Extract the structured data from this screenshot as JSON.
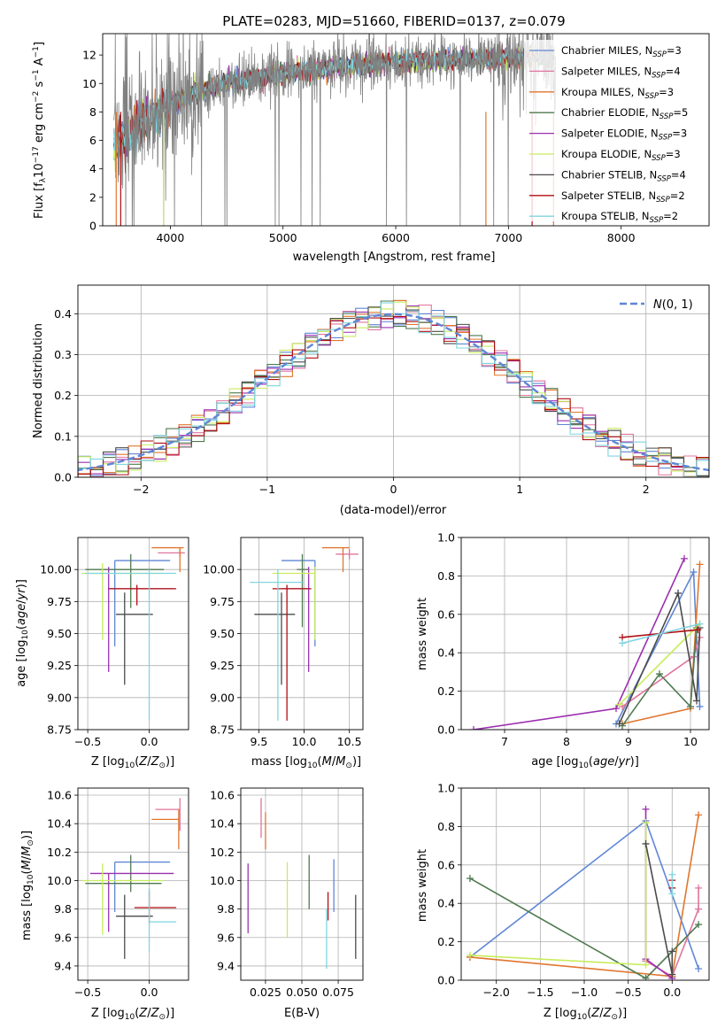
{
  "colors": {
    "Chabrier MILES": "#5f86d6",
    "Salpeter MILES": "#e0749e",
    "Kroupa MILES": "#e0762e",
    "Chabrier ELODIE": "#4f7a4f",
    "Salpeter ELODIE": "#9b2fb0",
    "Kroupa ELODIE": "#c8ec5c",
    "Chabrier STELIB": "#4b4b4b",
    "Salpeter STELIB": "#b00e12",
    "Kroupa STELIB": "#7fd5df",
    "data": "#808080",
    "normal": "#5f86d6"
  },
  "chart_data": [
    {
      "id": "spectrum",
      "type": "line",
      "title": "PLATE=0283, MJD=51660, FIBERID=0137, z=0.079",
      "xlabel": "wavelength [Angstrom, rest frame]",
      "ylabel": "Flux [f_λ 10^-17 erg cm^-2 s^-1 A^-1]",
      "xlim": [
        3400,
        8780
      ],
      "ylim": [
        0,
        13.5
      ],
      "xticks": [
        4000,
        5000,
        6000,
        7000,
        8000
      ],
      "yticks": [
        0,
        2,
        4,
        6,
        8,
        10,
        12
      ],
      "grid": false,
      "legend_position": "right",
      "continuum": {
        "x": [
          3500,
          3650,
          3800,
          4000,
          4200,
          4500,
          5000,
          5500,
          6000,
          6500,
          7000,
          7400
        ],
        "y": [
          6.0,
          6.5,
          7.5,
          8.6,
          9.3,
          10.0,
          10.7,
          11.2,
          11.5,
          11.7,
          11.8,
          11.8
        ]
      },
      "series": [
        {
          "name": "Chabrier MILES, N_SSP=3"
        },
        {
          "name": "Salpeter MILES, N_SSP=4"
        },
        {
          "name": "Kroupa MILES, N_SSP=3"
        },
        {
          "name": "Chabrier ELODIE, N_SSP=5"
        },
        {
          "name": "Salpeter ELODIE, N_SSP=3"
        },
        {
          "name": "Kroupa ELODIE, N_SSP=3"
        },
        {
          "name": "Chabrier STELIB, N_SSP=4"
        },
        {
          "name": "Salpeter STELIB, N_SSP=2"
        },
        {
          "name": "Kroupa STELIB, N_SSP=2"
        }
      ]
    },
    {
      "id": "residuals",
      "type": "histogram",
      "xlabel": "(data-model)/error",
      "ylabel": "Normed distribution",
      "xlim": [
        -2.5,
        2.5
      ],
      "ylim": [
        0,
        0.47
      ],
      "xticks": [
        -2,
        -1,
        0,
        1,
        2
      ],
      "yticks": [
        0.0,
        0.1,
        0.2,
        0.3,
        0.4
      ],
      "grid": true,
      "legend": "N(0, 1)",
      "legend_position": "top-right",
      "bin_width": 0.1
    },
    {
      "id": "age-vs-z",
      "type": "errorbar",
      "xlabel": "Z [log10(Z/Z⊙)]",
      "ylabel": "age [log10(age/yr)]",
      "xlim": [
        -0.58,
        0.32
      ],
      "ylim": [
        8.75,
        10.25
      ],
      "xticks": [
        -0.5,
        0.0
      ],
      "yticks": [
        8.75,
        9.0,
        9.25,
        9.5,
        9.75,
        10.0
      ],
      "grid": true,
      "points": [
        {
          "name": "Chabrier MILES",
          "x": -0.28,
          "xlo": -0.28,
          "xhi": 0.17,
          "y": 10.07,
          "ylo": 9.4,
          "yhi": 10.07
        },
        {
          "name": "Salpeter MILES",
          "x": 0.25,
          "xlo": 0.07,
          "xhi": 0.29,
          "y": 10.13,
          "ylo": 10.1,
          "yhi": 10.16
        },
        {
          "name": "Kroupa MILES",
          "x": 0.25,
          "xlo": 0.02,
          "xhi": 0.28,
          "y": 10.17,
          "ylo": 9.98,
          "yhi": 10.17
        },
        {
          "name": "Chabrier ELODIE",
          "x": -0.15,
          "xlo": -0.52,
          "xhi": 0.12,
          "y": 10.0,
          "ylo": 9.7,
          "yhi": 10.12
        },
        {
          "name": "Salpeter ELODIE",
          "x": -0.33,
          "xlo": -0.33,
          "xhi": 0.2,
          "y": 9.85,
          "ylo": 9.2,
          "yhi": 10.02
        },
        {
          "name": "Kroupa ELODIE",
          "x": -0.38,
          "xlo": -0.55,
          "xhi": 0.1,
          "y": 9.97,
          "ylo": 9.45,
          "yhi": 10.05
        },
        {
          "name": "Chabrier STELIB",
          "x": -0.2,
          "xlo": -0.27,
          "xhi": 0.03,
          "y": 9.65,
          "ylo": 9.1,
          "yhi": 9.82
        },
        {
          "name": "Salpeter STELIB",
          "x": -0.1,
          "xlo": -0.33,
          "xhi": 0.22,
          "y": 9.85,
          "ylo": 9.72,
          "yhi": 9.88
        },
        {
          "name": "Kroupa STELIB",
          "x": 0.0,
          "xlo": -0.52,
          "xhi": 0.22,
          "y": 9.97,
          "ylo": 8.82,
          "yhi": 10.0
        }
      ]
    },
    {
      "id": "age-vs-mass",
      "type": "errorbar",
      "xlabel": "mass [log10(M/M⊙)]",
      "ylabel": "",
      "xlim": [
        9.3,
        10.65
      ],
      "ylim": [
        8.75,
        10.25
      ],
      "xticks": [
        9.5,
        10.0,
        10.5
      ],
      "yticks": [
        8.75,
        9.0,
        9.25,
        9.5,
        9.75,
        10.0
      ],
      "grid": true,
      "points": [
        {
          "name": "Chabrier MILES",
          "x": 10.12,
          "xlo": 9.75,
          "xhi": 10.12,
          "y": 10.07,
          "ylo": 9.4,
          "yhi": 10.07
        },
        {
          "name": "Salpeter MILES",
          "x": 10.5,
          "xlo": 10.35,
          "xhi": 10.6,
          "y": 10.12,
          "ylo": 10.08,
          "yhi": 10.16
        },
        {
          "name": "Kroupa MILES",
          "x": 10.43,
          "xlo": 10.2,
          "xhi": 10.5,
          "y": 10.17,
          "ylo": 9.98,
          "yhi": 10.17
        },
        {
          "name": "Chabrier ELODIE",
          "x": 9.98,
          "xlo": 9.92,
          "xhi": 10.05,
          "y": 10.0,
          "ylo": 9.55,
          "yhi": 10.12
        },
        {
          "name": "Salpeter ELODIE",
          "x": 10.05,
          "xlo": 9.75,
          "xhi": 10.05,
          "y": 9.85,
          "ylo": 9.2,
          "yhi": 10.02
        },
        {
          "name": "Kroupa ELODIE",
          "x": 10.12,
          "xlo": 9.65,
          "xhi": 10.12,
          "y": 9.97,
          "ylo": 9.45,
          "yhi": 10.02
        },
        {
          "name": "Chabrier STELIB",
          "x": 9.75,
          "xlo": 9.45,
          "xhi": 9.9,
          "y": 9.65,
          "ylo": 9.1,
          "yhi": 9.82
        },
        {
          "name": "Salpeter STELIB",
          "x": 9.81,
          "xlo": 9.65,
          "xhi": 10.08,
          "y": 9.85,
          "ylo": 8.82,
          "yhi": 9.88
        },
        {
          "name": "Kroupa STELIB",
          "x": 9.71,
          "xlo": 9.4,
          "xhi": 10.0,
          "y": 9.9,
          "ylo": 8.82,
          "yhi": 10.0
        }
      ]
    },
    {
      "id": "weight-vs-age",
      "type": "line",
      "xlabel": "age [log10(age/yr)]",
      "ylabel": "mass weight",
      "xlim": [
        6.3,
        10.3
      ],
      "ylim": [
        0,
        1.0
      ],
      "xticks": [
        7,
        8,
        9,
        10
      ],
      "yticks": [
        0.0,
        0.2,
        0.4,
        0.6,
        0.8,
        1.0
      ],
      "grid": true,
      "series": [
        {
          "name": "Chabrier MILES",
          "x": [
            8.8,
            10.05,
            10.15
          ],
          "y": [
            0.03,
            0.82,
            0.12
          ]
        },
        {
          "name": "Salpeter MILES",
          "x": [
            8.9,
            10.05,
            10.15
          ],
          "y": [
            0.12,
            0.38,
            0.48
          ]
        },
        {
          "name": "Kroupa MILES",
          "x": [
            8.9,
            10.0,
            10.15
          ],
          "y": [
            0.03,
            0.11,
            0.86
          ]
        },
        {
          "name": "Chabrier ELODIE",
          "x": [
            8.9,
            9.5,
            10.0,
            10.1
          ],
          "y": [
            0.02,
            0.29,
            0.12,
            0.53
          ]
        },
        {
          "name": "Salpeter ELODIE",
          "x": [
            6.5,
            8.8,
            9.9
          ],
          "y": [
            0.0,
            0.11,
            0.89
          ]
        },
        {
          "name": "Kroupa ELODIE",
          "x": [
            8.85,
            10.15
          ],
          "y": [
            0.13,
            0.55
          ]
        },
        {
          "name": "Chabrier STELIB",
          "x": [
            8.85,
            9.8,
            10.1,
            10.15
          ],
          "y": [
            0.03,
            0.71,
            0.15,
            0.53
          ]
        },
        {
          "name": "Salpeter STELIB",
          "x": [
            8.9,
            10.12
          ],
          "y": [
            0.48,
            0.52
          ]
        },
        {
          "name": "Kroupa STELIB",
          "x": [
            8.9,
            10.15
          ],
          "y": [
            0.45,
            0.55
          ]
        }
      ]
    },
    {
      "id": "mass-vs-z",
      "type": "errorbar",
      "xlabel": "Z [log10(Z/Z⊙)]",
      "ylabel": "mass [log10(M/M⊙)]",
      "xlim": [
        -0.58,
        0.32
      ],
      "ylim": [
        9.3,
        10.65
      ],
      "xticks": [
        -0.5,
        0.0
      ],
      "yticks": [
        9.4,
        9.6,
        9.8,
        10.0,
        10.2,
        10.4,
        10.6
      ],
      "grid": true,
      "points": [
        {
          "name": "Chabrier MILES",
          "x": -0.28,
          "xlo": -0.28,
          "xhi": 0.17,
          "y": 10.13,
          "ylo": 9.78,
          "yhi": 10.13
        },
        {
          "name": "Salpeter MILES",
          "x": 0.25,
          "xlo": 0.05,
          "xhi": 0.25,
          "y": 10.5,
          "ylo": 10.35,
          "yhi": 10.58
        },
        {
          "name": "Kroupa MILES",
          "x": 0.24,
          "xlo": 0.02,
          "xhi": 0.24,
          "y": 10.43,
          "ylo": 10.22,
          "yhi": 10.5
        },
        {
          "name": "Chabrier ELODIE",
          "x": -0.15,
          "xlo": -0.52,
          "xhi": 0.1,
          "y": 9.98,
          "ylo": 9.92,
          "yhi": 10.18
        },
        {
          "name": "Salpeter ELODIE",
          "x": -0.33,
          "xlo": -0.48,
          "xhi": 0.2,
          "y": 10.05,
          "ylo": 9.64,
          "yhi": 10.05
        },
        {
          "name": "Kroupa ELODIE",
          "x": -0.38,
          "xlo": -0.55,
          "xhi": 0.12,
          "y": 10.0,
          "ylo": 9.62,
          "yhi": 10.12
        },
        {
          "name": "Chabrier STELIB",
          "x": -0.2,
          "xlo": -0.27,
          "xhi": 0.03,
          "y": 9.75,
          "ylo": 9.45,
          "yhi": 9.9
        },
        {
          "name": "Salpeter STELIB",
          "x": 0.0,
          "xlo": -0.12,
          "xhi": 0.22,
          "y": 9.81,
          "ylo": 9.7,
          "yhi": 9.93
        },
        {
          "name": "Kroupa STELIB",
          "x": 0.0,
          "xlo": 0.0,
          "xhi": 0.22,
          "y": 9.71,
          "ylo": 9.5,
          "yhi": 9.95
        }
      ]
    },
    {
      "id": "mass-vs-ebv",
      "type": "errorbar",
      "xlabel": "E(B-V)",
      "ylabel": "",
      "xlim": [
        0.008,
        0.092
      ],
      "ylim": [
        9.3,
        10.65
      ],
      "xticks": [
        0.025,
        0.05,
        0.075
      ],
      "xtick_labels": [
        "0.025",
        "0.050",
        "0.075"
      ],
      "yticks": [
        9.4,
        9.6,
        9.8,
        10.0,
        10.2,
        10.4,
        10.6
      ],
      "grid": true,
      "points": [
        {
          "name": "Chabrier MILES",
          "x": 0.072,
          "y": 9.95,
          "ylo": 9.78,
          "yhi": 10.15
        },
        {
          "name": "Salpeter MILES",
          "x": 0.022,
          "y": 10.5,
          "ylo": 10.3,
          "yhi": 10.58
        },
        {
          "name": "Kroupa MILES",
          "x": 0.025,
          "y": 10.38,
          "ylo": 10.22,
          "yhi": 10.48
        },
        {
          "name": "Chabrier ELODIE",
          "x": 0.055,
          "y": 10.0,
          "ylo": 9.8,
          "yhi": 10.18
        },
        {
          "name": "Salpeter ELODIE",
          "x": 0.013,
          "y": 9.9,
          "ylo": 9.63,
          "yhi": 10.12
        },
        {
          "name": "Kroupa ELODIE",
          "x": 0.04,
          "y": 9.9,
          "ylo": 9.6,
          "yhi": 10.13
        },
        {
          "name": "Chabrier STELIB",
          "x": 0.087,
          "y": 9.7,
          "ylo": 9.45,
          "yhi": 9.9
        },
        {
          "name": "Salpeter STELIB",
          "x": 0.068,
          "y": 9.85,
          "ylo": 9.72,
          "yhi": 9.92
        },
        {
          "name": "Kroupa STELIB",
          "x": 0.067,
          "y": 9.6,
          "ylo": 9.38,
          "yhi": 9.8
        }
      ]
    },
    {
      "id": "weight-vs-z",
      "type": "line",
      "xlabel": "Z [log10(Z/Z⊙)]",
      "ylabel": "mass weight",
      "xlim": [
        -2.4,
        0.42
      ],
      "ylim": [
        0,
        1.0
      ],
      "xticks": [
        -2.0,
        -1.5,
        -1.0,
        -0.5,
        0.0
      ],
      "yticks": [
        0.0,
        0.2,
        0.4,
        0.6,
        0.8,
        1.0
      ],
      "grid": true,
      "series": [
        {
          "name": "Chabrier MILES",
          "x": [
            -2.3,
            -0.3,
            0.3
          ],
          "y": [
            0.12,
            0.83,
            0.06
          ]
        },
        {
          "name": "Salpeter MILES",
          "x": [
            -0.3,
            0.0,
            0.3,
            0.3
          ],
          "y": [
            0.1,
            0.02,
            0.37,
            0.48
          ]
        },
        {
          "name": "Kroupa MILES",
          "x": [
            -2.3,
            0.0,
            0.3
          ],
          "y": [
            0.12,
            0.02,
            0.86
          ]
        },
        {
          "name": "Chabrier ELODIE",
          "x": [
            -2.3,
            -0.3,
            0.3
          ],
          "y": [
            0.53,
            0.01,
            0.29
          ]
        },
        {
          "name": "Salpeter ELODIE",
          "x": [
            -0.3,
            -0.3,
            0.0
          ],
          "y": [
            0.89,
            0.11,
            0.01
          ]
        },
        {
          "name": "Kroupa ELODIE",
          "x": [
            -2.3,
            -0.3,
            -0.3
          ],
          "y": [
            0.13,
            0.08,
            0.82
          ]
        },
        {
          "name": "Chabrier STELIB",
          "x": [
            -0.3,
            0.0,
            0.0
          ],
          "y": [
            0.71,
            0.03,
            0.15
          ]
        },
        {
          "name": "Salpeter STELIB",
          "x": [
            0.0,
            0.0
          ],
          "y": [
            0.48,
            0.52
          ]
        },
        {
          "name": "Kroupa STELIB",
          "x": [
            0.0,
            0.0
          ],
          "y": [
            0.45,
            0.55
          ]
        }
      ]
    }
  ]
}
